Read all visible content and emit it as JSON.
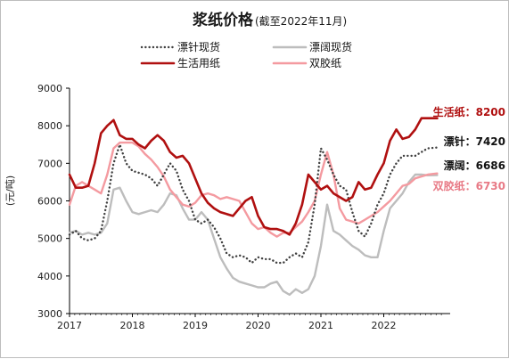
{
  "chart_data": {
    "type": "line",
    "title": "浆纸价格",
    "subtitle": "(截至2022年11月)",
    "ylabel": "(元/吨)",
    "xlabel": "",
    "ylim": [
      3000,
      9000
    ],
    "xlim": [
      2017.0,
      2023.0
    ],
    "y_ticks": [
      3000,
      4000,
      5000,
      6000,
      7000,
      8000,
      9000
    ],
    "x_ticks": [
      {
        "value": 2017,
        "label": "2017"
      },
      {
        "value": 2018,
        "label": "2018"
      },
      {
        "value": 2019,
        "label": "2019"
      },
      {
        "value": 2020,
        "label": "2020"
      },
      {
        "value": 2021,
        "label": "2021"
      },
      {
        "value": 2022,
        "label": "2022"
      }
    ],
    "grid": false,
    "legend_position": "top",
    "series": [
      {
        "name": "漂针现货",
        "color": "#404040",
        "style": "dotted",
        "x": [
          2017.0,
          2017.1,
          2017.2,
          2017.3,
          2017.4,
          2017.5,
          2017.6,
          2017.7,
          2017.8,
          2017.9,
          2018.0,
          2018.1,
          2018.2,
          2018.3,
          2018.4,
          2018.5,
          2018.6,
          2018.7,
          2018.8,
          2018.9,
          2019.0,
          2019.1,
          2019.2,
          2019.3,
          2019.4,
          2019.5,
          2019.6,
          2019.7,
          2019.8,
          2019.9,
          2020.0,
          2020.1,
          2020.2,
          2020.3,
          2020.4,
          2020.5,
          2020.6,
          2020.7,
          2020.8,
          2020.9,
          2021.0,
          2021.1,
          2021.2,
          2021.3,
          2021.4,
          2021.5,
          2021.6,
          2021.7,
          2021.8,
          2021.9,
          2022.0,
          2022.1,
          2022.2,
          2022.3,
          2022.4,
          2022.5,
          2022.6,
          2022.7,
          2022.85
        ],
        "values": [
          5100,
          5200,
          5000,
          4950,
          5000,
          5200,
          6000,
          7000,
          7500,
          7000,
          6800,
          6750,
          6700,
          6600,
          6400,
          6700,
          7000,
          6800,
          6300,
          6000,
          5500,
          5400,
          5500,
          5300,
          5000,
          4600,
          4500,
          4550,
          4500,
          4350,
          4500,
          4450,
          4450,
          4350,
          4350,
          4500,
          4600,
          4500,
          4900,
          5900,
          7400,
          7100,
          6700,
          6400,
          6300,
          5700,
          5200,
          5050,
          5400,
          5900,
          6200,
          6700,
          7000,
          7200,
          7200,
          7200,
          7300,
          7400,
          7420
        ]
      },
      {
        "name": "漂阔现货",
        "color": "#bdbdbd",
        "style": "solid",
        "x": [
          2017.0,
          2017.1,
          2017.2,
          2017.3,
          2017.4,
          2017.5,
          2017.6,
          2017.7,
          2017.8,
          2017.9,
          2018.0,
          2018.1,
          2018.2,
          2018.3,
          2018.4,
          2018.5,
          2018.6,
          2018.7,
          2018.8,
          2018.9,
          2019.0,
          2019.1,
          2019.2,
          2019.3,
          2019.4,
          2019.5,
          2019.6,
          2019.7,
          2019.8,
          2019.9,
          2020.0,
          2020.1,
          2020.2,
          2020.3,
          2020.4,
          2020.5,
          2020.6,
          2020.7,
          2020.8,
          2020.9,
          2021.0,
          2021.1,
          2021.2,
          2021.3,
          2021.4,
          2021.5,
          2021.6,
          2021.7,
          2021.8,
          2021.9,
          2022.0,
          2022.1,
          2022.2,
          2022.3,
          2022.4,
          2022.5,
          2022.6,
          2022.7,
          2022.85
        ],
        "values": [
          5150,
          5200,
          5100,
          5150,
          5100,
          5150,
          5400,
          6300,
          6350,
          6000,
          5700,
          5650,
          5700,
          5750,
          5700,
          5900,
          6200,
          6150,
          5800,
          5500,
          5500,
          5700,
          5500,
          5000,
          4500,
          4200,
          3950,
          3850,
          3800,
          3750,
          3700,
          3700,
          3800,
          3850,
          3600,
          3500,
          3650,
          3550,
          3650,
          4000,
          4800,
          5900,
          5200,
          5100,
          4950,
          4800,
          4700,
          4550,
          4500,
          4500,
          5200,
          5800,
          6000,
          6200,
          6500,
          6700,
          6700,
          6680,
          6686
        ]
      },
      {
        "name": "生活用纸",
        "color": "#b01010",
        "style": "solid",
        "x": [
          2017.0,
          2017.1,
          2017.2,
          2017.3,
          2017.4,
          2017.5,
          2017.6,
          2017.7,
          2017.8,
          2017.9,
          2018.0,
          2018.1,
          2018.2,
          2018.3,
          2018.4,
          2018.5,
          2018.6,
          2018.7,
          2018.8,
          2018.9,
          2019.0,
          2019.1,
          2019.2,
          2019.3,
          2019.4,
          2019.5,
          2019.6,
          2019.7,
          2019.8,
          2019.9,
          2020.0,
          2020.1,
          2020.2,
          2020.3,
          2020.4,
          2020.5,
          2020.6,
          2020.7,
          2020.8,
          2020.9,
          2021.0,
          2021.1,
          2021.2,
          2021.3,
          2021.4,
          2021.5,
          2021.6,
          2021.7,
          2021.8,
          2021.9,
          2022.0,
          2022.1,
          2022.2,
          2022.3,
          2022.4,
          2022.5,
          2022.6,
          2022.7,
          2022.85
        ],
        "values": [
          6700,
          6350,
          6350,
          6400,
          7000,
          7800,
          8000,
          8150,
          7750,
          7650,
          7650,
          7500,
          7400,
          7600,
          7750,
          7600,
          7300,
          7150,
          7200,
          7000,
          6600,
          6200,
          5950,
          5800,
          5700,
          5650,
          5600,
          5800,
          6000,
          6100,
          5600,
          5300,
          5250,
          5250,
          5200,
          5100,
          5400,
          5900,
          6700,
          6500,
          6300,
          6400,
          6200,
          6100,
          6000,
          6100,
          6500,
          6300,
          6350,
          6700,
          7000,
          7600,
          7900,
          7650,
          7700,
          7900,
          8200,
          8200,
          8200
        ]
      },
      {
        "name": "双胶纸",
        "color": "#f49aa0",
        "style": "solid",
        "x": [
          2017.0,
          2017.1,
          2017.2,
          2017.3,
          2017.4,
          2017.5,
          2017.6,
          2017.7,
          2017.8,
          2017.9,
          2018.0,
          2018.1,
          2018.2,
          2018.3,
          2018.4,
          2018.5,
          2018.6,
          2018.7,
          2018.8,
          2018.9,
          2019.0,
          2019.1,
          2019.2,
          2019.3,
          2019.4,
          2019.5,
          2019.6,
          2019.7,
          2019.8,
          2019.9,
          2020.0,
          2020.1,
          2020.2,
          2020.3,
          2020.4,
          2020.5,
          2020.6,
          2020.7,
          2020.8,
          2020.9,
          2021.0,
          2021.1,
          2021.2,
          2021.3,
          2021.4,
          2021.5,
          2021.6,
          2021.7,
          2021.8,
          2021.9,
          2022.0,
          2022.1,
          2022.2,
          2022.3,
          2022.4,
          2022.5,
          2022.6,
          2022.7,
          2022.85
        ],
        "values": [
          5900,
          6400,
          6500,
          6400,
          6300,
          6200,
          6700,
          7400,
          7550,
          7550,
          7550,
          7450,
          7250,
          7100,
          6900,
          6650,
          6300,
          6100,
          5900,
          5850,
          5950,
          6150,
          6200,
          6150,
          6050,
          6100,
          6050,
          6000,
          5700,
          5400,
          5250,
          5300,
          5150,
          5050,
          5150,
          5150,
          5300,
          5450,
          5700,
          6000,
          6700,
          7300,
          6700,
          5800,
          5500,
          5450,
          5400,
          5500,
          5600,
          5700,
          5850,
          6000,
          6200,
          6400,
          6450,
          6600,
          6650,
          6700,
          6730
        ]
      }
    ],
    "end_labels": [
      {
        "text": "生活纸：8200",
        "color": "#b01010",
        "y": 8200
      },
      {
        "text": "漂针：7420",
        "color": "#111111",
        "y": 7420
      },
      {
        "text": "漂阔：6686",
        "color": "#111111",
        "y": 6686
      },
      {
        "text": "双胶纸：6730",
        "color": "#e87a86",
        "y": 6730
      }
    ]
  }
}
